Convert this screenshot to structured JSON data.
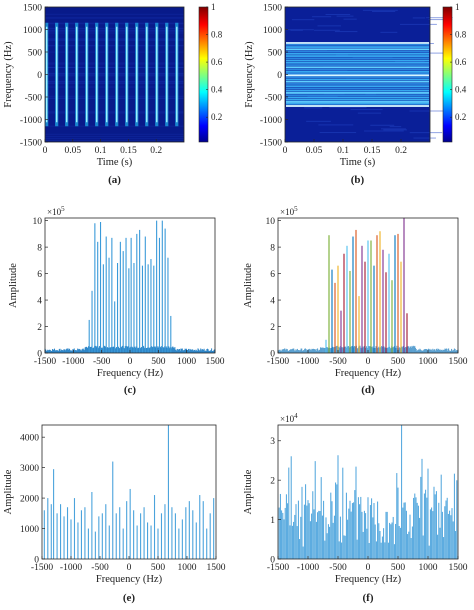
{
  "chart_data": [
    {
      "id": "a",
      "panel_label": "(a)",
      "type": "heatmap",
      "xlabel": "Time (s)",
      "ylabel": "Frequency (Hz)",
      "xlim": [
        0,
        0.25
      ],
      "ylim": [
        1500,
        -1500
      ],
      "x_ticks": [
        "0",
        "0.05",
        "0.1",
        "0.15",
        "0.2"
      ],
      "x_tick_values": [
        0,
        0.05,
        0.1,
        0.15,
        0.2
      ],
      "y_ticks": [
        "-1500",
        "-1000",
        "-500",
        "0",
        "500",
        "1000",
        "1500"
      ],
      "y_tick_values": [
        -1500,
        -1000,
        -500,
        0,
        500,
        1000,
        1500
      ],
      "colorbar_ticks": [
        "1",
        "0.8",
        "0.6",
        "0.4",
        "0.2"
      ],
      "colorbar_tick_values": [
        1,
        0.8,
        0.6,
        0.4,
        0.2
      ],
      "pulse_times": [
        0.003,
        0.021,
        0.039,
        0.057,
        0.075,
        0.093,
        0.111,
        0.129,
        0.147,
        0.165,
        0.183,
        0.201,
        0.219,
        0.237
      ],
      "band_hz": [
        -1150,
        1150
      ]
    },
    {
      "id": "b",
      "panel_label": "(b)",
      "type": "heatmap",
      "xlabel": "Time (s)",
      "ylabel": "Frequency (Hz)",
      "xlim": [
        0,
        0.25
      ],
      "ylim": [
        1500,
        -1500
      ],
      "x_ticks": [
        "0",
        "0.05",
        "0.1",
        "0.15",
        "0.2"
      ],
      "x_tick_values": [
        0,
        0.05,
        0.1,
        0.15,
        0.2
      ],
      "y_ticks": [
        "-1500",
        "-1000",
        "-500",
        "0",
        "500",
        "1000",
        "1500"
      ],
      "y_tick_values": [
        -1500,
        -1000,
        -500,
        0,
        500,
        1000,
        1500
      ],
      "colorbar_ticks": [
        "1",
        "0.8",
        "0.6",
        "0.4",
        "0.2"
      ],
      "colorbar_tick_values": [
        1,
        0.8,
        0.6,
        0.4,
        0.2
      ],
      "tone_frequencies": [
        -700,
        -660,
        -610,
        -560,
        -510,
        -460,
        -410,
        -360,
        -310,
        -260,
        -210,
        -160,
        -110,
        -60,
        -20,
        20,
        60,
        110,
        160,
        210,
        260,
        310,
        360,
        410,
        460,
        510,
        560,
        610,
        650,
        700
      ],
      "tone_intensity": [
        0.95,
        0.4,
        0.5,
        0.6,
        0.45,
        0.5,
        0.55,
        0.45,
        0.5,
        0.55,
        0.4,
        0.6,
        0.45,
        0.5,
        0.4,
        0.9,
        0.4,
        0.55,
        0.6,
        0.45,
        0.5,
        0.4,
        0.55,
        0.6,
        0.45,
        0.5,
        0.55,
        0.65,
        0.5,
        0.9
      ]
    },
    {
      "id": "c",
      "panel_label": "(c)",
      "type": "bar",
      "xlabel": "Frequency (Hz)",
      "ylabel": "Amplitude",
      "y_exponent": "×10^5",
      "xlim": [
        -1500,
        1500
      ],
      "ylim": [
        0,
        10.2
      ],
      "x_ticks": [
        "-1500",
        "-1000",
        "-500",
        "0",
        "500",
        "1000",
        "1500"
      ],
      "x_tick_values": [
        -1500,
        -1000,
        -500,
        0,
        500,
        1000,
        1500
      ],
      "y_ticks": [
        "0",
        "2",
        "4",
        "6",
        "8",
        "10"
      ],
      "y_tick_values": [
        0,
        2,
        4,
        6,
        8,
        10
      ],
      "x": [
        -720,
        -670,
        -620,
        -570,
        -520,
        -470,
        -420,
        -370,
        -320,
        -270,
        -220,
        -170,
        -120,
        -70,
        -20,
        20,
        70,
        120,
        170,
        220,
        270,
        320,
        370,
        420,
        470,
        520,
        570,
        620,
        670,
        720
      ],
      "values": [
        2.5,
        4.7,
        9.8,
        8.4,
        9.9,
        6.7,
        8.8,
        7.2,
        8.7,
        3.9,
        6.8,
        8.4,
        7.7,
        8.7,
        6.4,
        8.7,
        6.8,
        9.0,
        9.3,
        6.6,
        8.8,
        6.7,
        7.1,
        6.6,
        10.0,
        8.7,
        10.0,
        9.4,
        7.2,
        2.8
      ]
    },
    {
      "id": "d",
      "panel_label": "(d)",
      "type": "bar",
      "xlabel": "Frequency (Hz)",
      "ylabel": "Amplitude",
      "y_exponent": "×10^5",
      "xlim": [
        -1500,
        1500
      ],
      "ylim": [
        0,
        10.2
      ],
      "x_ticks": [
        "-1500",
        "-1000",
        "-500",
        "0",
        "500",
        "1000",
        "1500"
      ],
      "x_tick_values": [
        -1500,
        -1000,
        -500,
        0,
        500,
        1000,
        1500
      ],
      "y_ticks": [
        "0",
        "2",
        "4",
        "6",
        "8",
        "10"
      ],
      "y_tick_values": [
        0,
        2,
        4,
        6,
        8,
        10
      ],
      "x": [
        -700,
        -650,
        -600,
        -550,
        -500,
        -450,
        -400,
        -350,
        -300,
        -250,
        -200,
        -150,
        -100,
        -50,
        0,
        50,
        100,
        150,
        200,
        250,
        300,
        350,
        400,
        450,
        500,
        550,
        600,
        650
      ],
      "values": [
        1.0,
        8.9,
        6.3,
        5.3,
        6.6,
        3.2,
        7.5,
        8.1,
        6.2,
        8.8,
        9.3,
        4.3,
        8.1,
        6.9,
        8.5,
        8.5,
        6.6,
        8.9,
        9.2,
        7.8,
        6.1,
        7.5,
        5.5,
        8.9,
        9.0,
        6.9,
        10.2,
        3.0
      ],
      "colors": [
        "#4dbeee",
        "#77ac30",
        "#0072bd",
        "#d95319",
        "#edb120",
        "#7e2f8e",
        "#a2142f",
        "#4dbeee",
        "#77ac30",
        "#0072bd",
        "#d95319",
        "#edb120",
        "#7e2f8e",
        "#a2142f",
        "#4dbeee",
        "#77ac30",
        "#0072bd",
        "#d95319",
        "#edb120",
        "#7e2f8e",
        "#a2142f",
        "#4dbeee",
        "#77ac30",
        "#0072bd",
        "#d95319",
        "#edb120",
        "#7e2f8e",
        "#a2142f"
      ]
    },
    {
      "id": "e",
      "panel_label": "(e)",
      "type": "bar",
      "xlabel": "Frequency (Hz)",
      "ylabel": "Amplitude",
      "xlim": [
        -1500,
        1500
      ],
      "ylim": [
        0,
        4400
      ],
      "x_ticks": [
        "-1500",
        "-1000",
        "-500",
        "0",
        "500",
        "1000",
        "1500"
      ],
      "x_tick_values": [
        -1500,
        -1000,
        -500,
        0,
        500,
        1000,
        1500
      ],
      "y_ticks": [
        "0",
        "1000",
        "2000",
        "3000",
        "4000"
      ],
      "y_tick_values": [
        0,
        1000,
        2000,
        3000,
        4000
      ],
      "x": [
        -1460,
        -1400,
        -1340,
        -1300,
        -1240,
        -1180,
        -1120,
        -1060,
        -1000,
        -940,
        -880,
        -820,
        -760,
        -700,
        -640,
        -580,
        -520,
        -460,
        -400,
        -340,
        -280,
        -220,
        -160,
        -100,
        -40,
        20,
        80,
        140,
        200,
        260,
        320,
        380,
        440,
        500,
        560,
        620,
        680,
        740,
        800,
        860,
        920,
        980,
        1040,
        1100,
        1160,
        1220,
        1280,
        1340,
        1400,
        1460
      ],
      "values": [
        1600,
        2000,
        1800,
        2950,
        1500,
        1800,
        1400,
        1700,
        1300,
        2000,
        1200,
        1600,
        1700,
        1000,
        2200,
        900,
        1400,
        1500,
        1800,
        1100,
        3200,
        1500,
        1700,
        1000,
        1900,
        2300,
        1600,
        1100,
        1500,
        1700,
        1200,
        1100,
        2100,
        1000,
        1500,
        1800,
        4400,
        1700,
        1500,
        1000,
        1300,
        1700,
        1900,
        1600,
        1200,
        2100,
        1900,
        1000,
        1500,
        2000
      ]
    },
    {
      "id": "f",
      "panel_label": "(f)",
      "type": "bar",
      "xlabel": "Frequency (Hz)",
      "ylabel": "Amplitude",
      "y_exponent": "×10^4",
      "xlim": [
        -1500,
        1500
      ],
      "ylim": [
        0,
        3.4
      ],
      "x_ticks": [
        "-1500",
        "-1000",
        "-500",
        "0",
        "500",
        "1000",
        "1500"
      ],
      "x_tick_values": [
        -1500,
        -1000,
        -500,
        0,
        500,
        1000,
        1500
      ],
      "y_ticks": [
        "0",
        "1",
        "2",
        "3"
      ],
      "y_tick_values": [
        0,
        1,
        2,
        3
      ]
    }
  ]
}
